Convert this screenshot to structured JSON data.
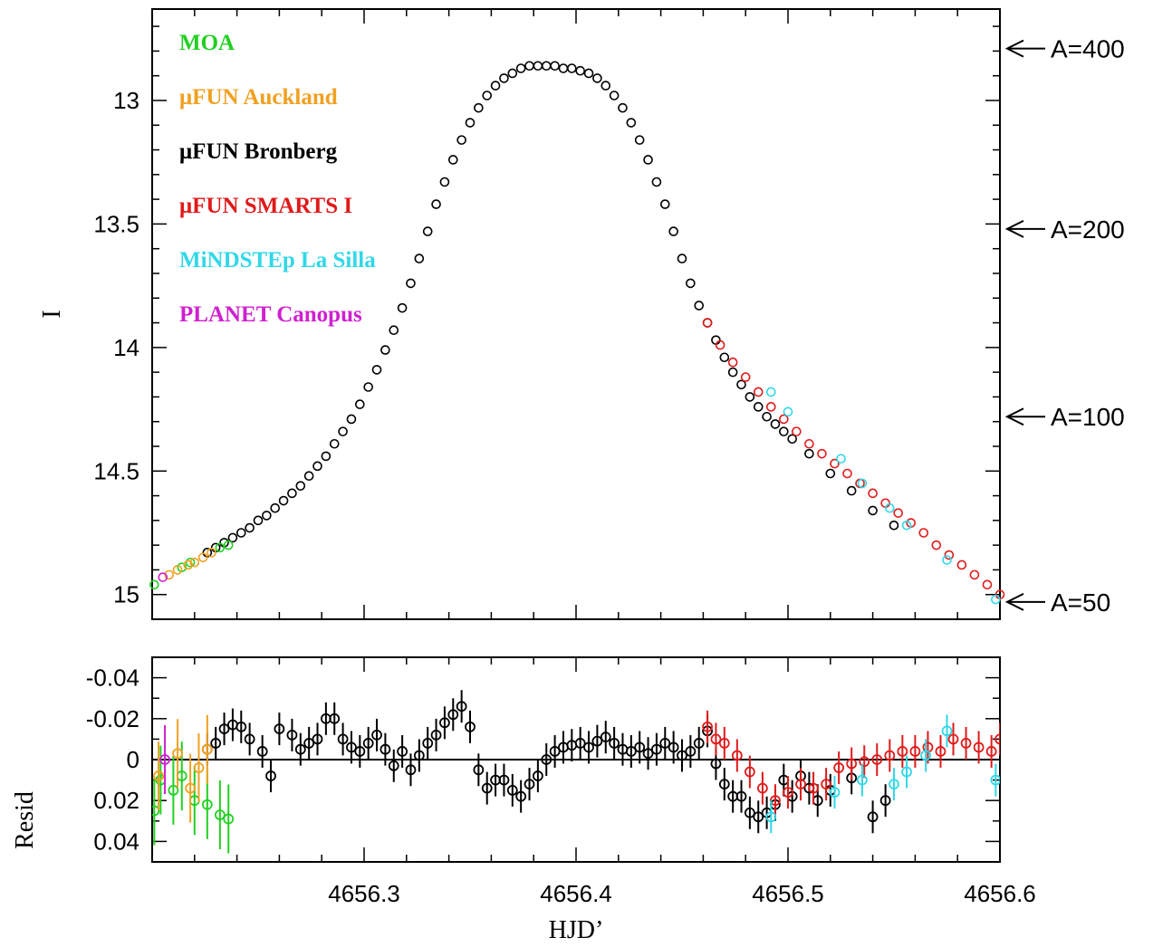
{
  "chart_data": [
    {
      "type": "scatter",
      "panel": "top",
      "xlabel": "",
      "ylabel": "I",
      "xlim": [
        4656.2,
        4656.6
      ],
      "ylim": [
        15.1,
        12.63
      ],
      "y_inverted": true,
      "y_ticks": [
        "13",
        "13.5",
        "14",
        "14.5",
        "15"
      ],
      "y_tick_values": [
        13,
        13.5,
        14,
        14.5,
        15
      ],
      "legend_placement": "top-left",
      "legend": [
        {
          "name": "MOA",
          "label": "MOA",
          "color": "#22d022"
        },
        {
          "name": "μFUN Auckland",
          "label": "μFUN Auckland",
          "color": "#f0a020"
        },
        {
          "name": "μFUN Bronberg",
          "label": "μFUN Bronberg",
          "color": "#000000"
        },
        {
          "name": "μFUN SMARTS I",
          "label": "μFUN SMARTS I",
          "color": "#e01a1a"
        },
        {
          "name": "MiNDSTEp La Silla",
          "label": "MiNDSTEp La Silla",
          "color": "#30d8e8"
        },
        {
          "name": "PLANET Canopus",
          "label": "PLANET Canopus",
          "color": "#d020d0"
        }
      ],
      "magnification_markers": [
        {
          "label": "A=400",
          "I": 12.79
        },
        {
          "label": "A=200",
          "I": 13.52
        },
        {
          "label": "A=100",
          "I": 14.28
        },
        {
          "label": "A=50",
          "I": 15.03
        }
      ],
      "series": [
        {
          "name": "MOA",
          "color": "#22d022",
          "x": [
            4656.201,
            4656.214,
            4656.218,
            4656.232,
            4656.236
          ],
          "y": [
            14.96,
            14.89,
            14.87,
            14.81,
            14.8
          ]
        },
        {
          "name": "μFUN Auckland",
          "color": "#f0a020",
          "x": [
            4656.208,
            4656.212,
            4656.217,
            4656.22,
            4656.224,
            4656.228
          ],
          "y": [
            14.92,
            14.9,
            14.88,
            14.87,
            14.85,
            14.83
          ]
        },
        {
          "name": "μFUN Bronberg",
          "color": "#000000",
          "x": [
            4656.226,
            4656.23,
            4656.234,
            4656.238,
            4656.242,
            4656.246,
            4656.25,
            4656.254,
            4656.258,
            4656.262,
            4656.266,
            4656.27,
            4656.274,
            4656.278,
            4656.282,
            4656.286,
            4656.29,
            4656.294,
            4656.298,
            4656.302,
            4656.306,
            4656.31,
            4656.314,
            4656.318,
            4656.322,
            4656.326,
            4656.33,
            4656.334,
            4656.338,
            4656.342,
            4656.346,
            4656.35,
            4656.354,
            4656.358,
            4656.362,
            4656.366,
            4656.37,
            4656.374,
            4656.378,
            4656.382,
            4656.386,
            4656.39,
            4656.394,
            4656.398,
            4656.402,
            4656.406,
            4656.41,
            4656.414,
            4656.418,
            4656.422,
            4656.426,
            4656.43,
            4656.434,
            4656.438,
            4656.442,
            4656.446,
            4656.45,
            4656.454,
            4656.458,
            4656.462,
            4656.466,
            4656.47,
            4656.474,
            4656.478,
            4656.482,
            4656.486,
            4656.49,
            4656.494,
            4656.498,
            4656.502,
            4656.51,
            4656.52,
            4656.53,
            4656.54,
            4656.55
          ],
          "y": [
            14.83,
            14.81,
            14.79,
            14.77,
            14.75,
            14.73,
            14.7,
            14.68,
            14.65,
            14.62,
            14.59,
            14.56,
            14.52,
            14.48,
            14.44,
            14.39,
            14.34,
            14.29,
            14.23,
            14.16,
            14.09,
            14.01,
            13.93,
            13.84,
            13.74,
            13.64,
            13.53,
            13.42,
            13.33,
            13.24,
            13.16,
            13.09,
            13.03,
            12.98,
            12.94,
            12.91,
            12.89,
            12.87,
            12.86,
            12.86,
            12.86,
            12.86,
            12.87,
            12.87,
            12.88,
            12.89,
            12.91,
            12.94,
            12.98,
            13.03,
            13.09,
            13.16,
            13.24,
            13.33,
            13.42,
            13.53,
            13.64,
            13.74,
            13.83,
            13.9,
            13.97,
            14.04,
            14.1,
            14.15,
            14.2,
            14.24,
            14.28,
            14.31,
            14.34,
            14.37,
            14.43,
            14.51,
            14.58,
            14.66,
            14.72
          ]
        },
        {
          "name": "μFUN SMARTS I",
          "color": "#e01a1a",
          "x": [
            4656.462,
            4656.468,
            4656.474,
            4656.48,
            4656.486,
            4656.492,
            4656.498,
            4656.504,
            4656.51,
            4656.516,
            4656.522,
            4656.528,
            4656.534,
            4656.54,
            4656.546,
            4656.552,
            4656.558,
            4656.564,
            4656.57,
            4656.576,
            4656.582,
            4656.588,
            4656.594,
            4656.6
          ],
          "y": [
            13.9,
            13.99,
            14.06,
            14.12,
            14.18,
            14.24,
            14.29,
            14.34,
            14.39,
            14.43,
            14.47,
            14.51,
            14.55,
            14.59,
            14.63,
            14.67,
            14.71,
            14.75,
            14.8,
            14.84,
            14.88,
            14.92,
            14.96,
            15.0
          ]
        },
        {
          "name": "MiNDSTEp La Silla",
          "color": "#30d8e8",
          "x": [
            4656.492,
            4656.5,
            4656.525,
            4656.535,
            4656.548,
            4656.556,
            4656.575,
            4656.598
          ],
          "y": [
            14.18,
            14.26,
            14.45,
            14.55,
            14.65,
            14.72,
            14.86,
            15.02
          ]
        },
        {
          "name": "PLANET Canopus",
          "color": "#d020d0",
          "x": [
            4656.205
          ],
          "y": [
            14.93
          ]
        }
      ]
    },
    {
      "type": "scatter",
      "panel": "bottom",
      "xlabel": "HJD’",
      "ylabel": "Resid",
      "xlim": [
        4656.2,
        4656.6
      ],
      "ylim": [
        0.05,
        -0.05
      ],
      "y_inverted": true,
      "x_ticks": [
        "4656.3",
        "4656.4",
        "4656.5",
        "4656.6"
      ],
      "x_tick_values": [
        4656.3,
        4656.4,
        4656.5,
        4656.6
      ],
      "y_ticks": [
        "-0.04",
        "-0.02",
        "0",
        "0.02",
        "0.04"
      ],
      "y_tick_values": [
        -0.04,
        -0.02,
        0,
        0.02,
        0.04
      ],
      "series": [
        {
          "name": "MOA",
          "color": "#22d022",
          "x": [
            4656.201,
            4656.204,
            4656.21,
            4656.214,
            4656.22,
            4656.226,
            4656.232,
            4656.236
          ],
          "y": [
            0.025,
            0.01,
            0.015,
            0.008,
            0.02,
            0.022,
            0.027,
            0.029
          ]
        },
        {
          "name": "μFUN Auckland",
          "color": "#f0a020",
          "x": [
            4656.203,
            4656.212,
            4656.218,
            4656.222,
            4656.226
          ],
          "y": [
            0.008,
            -0.003,
            0.014,
            0.004,
            -0.005
          ]
        },
        {
          "name": "μFUN Bronberg",
          "color": "#000000",
          "x": [
            4656.226,
            4656.23,
            4656.234,
            4656.238,
            4656.242,
            4656.246,
            4656.252,
            4656.256,
            4656.26,
            4656.266,
            4656.27,
            4656.274,
            4656.278,
            4656.282,
            4656.286,
            4656.29,
            4656.294,
            4656.298,
            4656.302,
            4656.306,
            4656.31,
            4656.314,
            4656.318,
            4656.322,
            4656.326,
            4656.33,
            4656.334,
            4656.338,
            4656.342,
            4656.346,
            4656.35,
            4656.354,
            4656.358,
            4656.362,
            4656.366,
            4656.37,
            4656.374,
            4656.378,
            4656.382,
            4656.386,
            4656.39,
            4656.394,
            4656.398,
            4656.402,
            4656.406,
            4656.41,
            4656.414,
            4656.418,
            4656.422,
            4656.426,
            4656.43,
            4656.434,
            4656.438,
            4656.442,
            4656.446,
            4656.45,
            4656.454,
            4656.458,
            4656.462,
            4656.466,
            4656.47,
            4656.474,
            4656.478,
            4656.482,
            4656.486,
            4656.49,
            4656.494,
            4656.498,
            4656.502,
            4656.506,
            4656.51,
            4656.514,
            4656.52,
            4656.53,
            4656.54,
            4656.546
          ],
          "y": [
            -0.005,
            -0.008,
            -0.015,
            -0.017,
            -0.016,
            -0.01,
            -0.004,
            0.008,
            -0.015,
            -0.012,
            -0.005,
            -0.008,
            -0.01,
            -0.02,
            -0.02,
            -0.01,
            -0.006,
            -0.004,
            -0.008,
            -0.012,
            -0.005,
            0.003,
            -0.004,
            0.005,
            -0.002,
            -0.008,
            -0.012,
            -0.018,
            -0.022,
            -0.026,
            -0.016,
            0.005,
            0.014,
            0.01,
            0.01,
            0.015,
            0.018,
            0.012,
            0.008,
            0.0,
            -0.004,
            -0.006,
            -0.007,
            -0.008,
            -0.006,
            -0.009,
            -0.011,
            -0.008,
            -0.005,
            -0.004,
            -0.006,
            -0.003,
            -0.005,
            -0.008,
            -0.006,
            -0.002,
            -0.004,
            -0.008,
            -0.014,
            0.002,
            0.012,
            0.018,
            0.018,
            0.026,
            0.028,
            0.026,
            0.022,
            0.01,
            0.018,
            0.008,
            0.014,
            0.02,
            0.015,
            0.009,
            0.028,
            0.02
          ]
        },
        {
          "name": "μFUN SMARTS I",
          "color": "#e01a1a",
          "x": [
            4656.462,
            4656.466,
            4656.47,
            4656.476,
            4656.482,
            4656.488,
            4656.494,
            4656.5,
            4656.506,
            4656.512,
            4656.518,
            4656.524,
            4656.53,
            4656.536,
            4656.542,
            4656.548,
            4656.554,
            4656.56,
            4656.566,
            4656.572,
            4656.578,
            4656.584,
            4656.59,
            4656.596,
            4656.6
          ],
          "y": [
            -0.016,
            -0.01,
            -0.008,
            -0.002,
            0.006,
            0.014,
            0.02,
            0.016,
            0.012,
            0.014,
            0.012,
            0.004,
            0.002,
            0.001,
            0.0,
            -0.002,
            -0.004,
            -0.004,
            -0.006,
            -0.004,
            -0.01,
            -0.008,
            -0.006,
            -0.004,
            -0.01
          ]
        },
        {
          "name": "MiNDSTEp La Silla",
          "color": "#30d8e8",
          "x": [
            4656.492,
            4656.522,
            4656.535,
            4656.55,
            4656.556,
            4656.565,
            4656.575,
            4656.598
          ],
          "y": [
            0.028,
            0.016,
            0.01,
            0.012,
            0.006,
            -0.002,
            -0.014,
            0.01
          ]
        },
        {
          "name": "PLANET Canopus",
          "color": "#d020d0",
          "x": [
            4656.206
          ],
          "y": [
            0.0
          ]
        }
      ]
    }
  ]
}
